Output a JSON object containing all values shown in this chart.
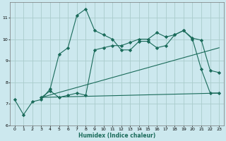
{
  "xlabel": "Humidex (Indice chaleur)",
  "bg_color": "#cce8ee",
  "grid_color": "#aacccc",
  "line_color": "#1a6b5a",
  "xlim": [
    -0.5,
    23.5
  ],
  "ylim": [
    6,
    11.7
  ],
  "yticks": [
    6,
    7,
    8,
    9,
    10,
    11
  ],
  "xticks": [
    0,
    1,
    2,
    3,
    4,
    5,
    6,
    7,
    8,
    9,
    10,
    11,
    12,
    13,
    14,
    15,
    16,
    17,
    18,
    19,
    20,
    21,
    22,
    23
  ],
  "line1_x": [
    0,
    1,
    2,
    3,
    4,
    5,
    6,
    7,
    8,
    9,
    10,
    11,
    12,
    13,
    14,
    15,
    16,
    17,
    18,
    19,
    20,
    21,
    22,
    23
  ],
  "line1_y": [
    7.2,
    6.5,
    7.1,
    7.2,
    7.7,
    9.3,
    9.6,
    11.1,
    11.4,
    10.4,
    10.2,
    10.0,
    9.5,
    9.5,
    9.9,
    9.9,
    9.6,
    9.7,
    10.2,
    10.4,
    10.0,
    8.6,
    7.5,
    7.5
  ],
  "line2_x": [
    3,
    4,
    5,
    6,
    7,
    8,
    9,
    10,
    11,
    12,
    13,
    14,
    15,
    16,
    17,
    18,
    19,
    20,
    21,
    22,
    23
  ],
  "line2_y": [
    7.3,
    7.6,
    7.3,
    7.4,
    7.5,
    7.4,
    9.5,
    9.6,
    9.7,
    9.7,
    9.85,
    10.0,
    10.0,
    10.3,
    10.1,
    10.2,
    10.4,
    10.05,
    9.95,
    8.55,
    8.45
  ],
  "line3_x": [
    3,
    23
  ],
  "line3_y": [
    7.3,
    9.6
  ],
  "line4_x": [
    3,
    23
  ],
  "line4_y": [
    7.3,
    7.5
  ]
}
